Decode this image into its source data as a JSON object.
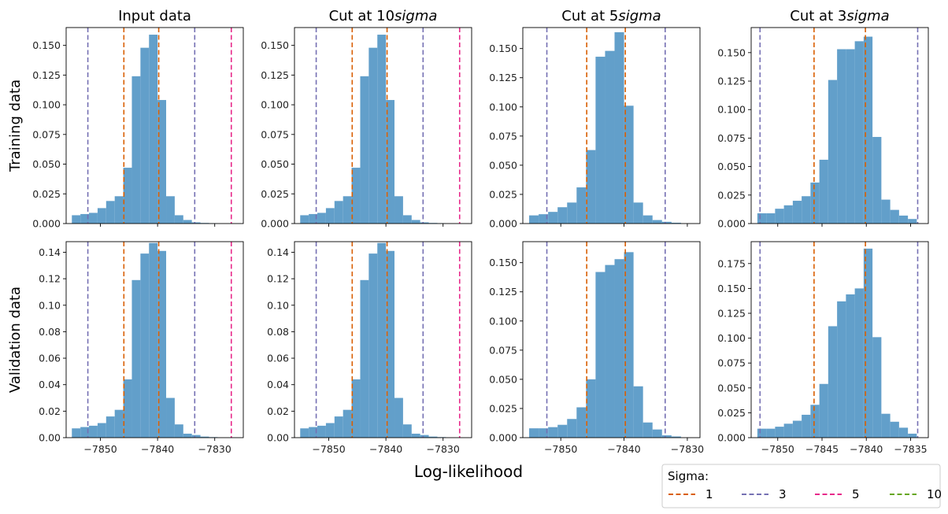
{
  "figure": {
    "xlabel": "Log-likelihood",
    "row_labels": [
      "Training data",
      "Validation data"
    ],
    "column_titles": [
      "Input data",
      "Cut at 10$sigma$",
      "Cut at 5$sigma$",
      "Cut at 3$sigma$"
    ],
    "legend": {
      "title": "Sigma:",
      "position": "bottom-right",
      "entries": [
        {
          "label": "1",
          "color": "#d95f02"
        },
        {
          "label": "3",
          "color": "#7570b3"
        },
        {
          "label": "5",
          "color": "#e7298a"
        },
        {
          "label": "10",
          "color": "#66a61e"
        }
      ]
    },
    "bar_color": "#629fca"
  },
  "chart_data": [
    {
      "type": "bar",
      "row": 0,
      "col": 0,
      "title": "Input data",
      "ylabel": "Training data",
      "xlim": [
        -7856,
        -7825
      ],
      "ylim": [
        0,
        0.165
      ],
      "xticks": [
        -7850,
        -7840,
        -7830
      ],
      "show_xtick_labels": false,
      "yticks": [
        0,
        0.025,
        0.05,
        0.075,
        0.1,
        0.125,
        0.15
      ],
      "ytick_labels": [
        "0.000",
        "0.025",
        "0.050",
        "0.075",
        "0.100",
        "0.125",
        "0.150"
      ],
      "bin_edges": [
        -7855,
        -7853.5,
        -7852,
        -7850.5,
        -7849,
        -7847.5,
        -7846,
        -7844.5,
        -7843,
        -7841.5,
        -7840,
        -7838.5,
        -7837,
        -7835.5,
        -7834,
        -7832.5,
        -7831,
        -7829.5
      ],
      "values": [
        0.007,
        0.008,
        0.009,
        0.013,
        0.019,
        0.023,
        0.047,
        0.124,
        0.148,
        0.159,
        0.104,
        0.023,
        0.007,
        0.003,
        0.001,
        0.0005,
        0.0003
      ],
      "vlines": [
        {
          "x": -7845.9,
          "sigma": "1"
        },
        {
          "x": -7839.8,
          "sigma": "1"
        },
        {
          "x": -7852.2,
          "sigma": "3"
        },
        {
          "x": -7833.5,
          "sigma": "3"
        },
        {
          "x": -7827.1,
          "sigma": "5"
        }
      ]
    },
    {
      "type": "bar",
      "row": 0,
      "col": 1,
      "title": "Cut at 10$sigma$",
      "xlim": [
        -7856,
        -7825
      ],
      "ylim": [
        0,
        0.165
      ],
      "xticks": [
        -7850,
        -7840,
        -7830
      ],
      "show_xtick_labels": false,
      "yticks": [
        0,
        0.025,
        0.05,
        0.075,
        0.1,
        0.125,
        0.15
      ],
      "ytick_labels": [
        "0.000",
        "0.025",
        "0.050",
        "0.075",
        "0.100",
        "0.125",
        "0.150"
      ],
      "bin_edges": [
        -7855,
        -7853.5,
        -7852,
        -7850.5,
        -7849,
        -7847.5,
        -7846,
        -7844.5,
        -7843,
        -7841.5,
        -7840,
        -7838.5,
        -7837,
        -7835.5,
        -7834,
        -7832.5,
        -7831,
        -7829.5
      ],
      "values": [
        0.007,
        0.008,
        0.009,
        0.013,
        0.019,
        0.023,
        0.047,
        0.124,
        0.148,
        0.159,
        0.104,
        0.023,
        0.007,
        0.003,
        0.001,
        0.0005,
        0.0003
      ],
      "vlines": [
        {
          "x": -7845.9,
          "sigma": "1"
        },
        {
          "x": -7839.8,
          "sigma": "1"
        },
        {
          "x": -7852.2,
          "sigma": "3"
        },
        {
          "x": -7833.5,
          "sigma": "3"
        },
        {
          "x": -7827.1,
          "sigma": "5"
        }
      ]
    },
    {
      "type": "bar",
      "row": 0,
      "col": 2,
      "title": "Cut at 5$sigma$",
      "xlim": [
        -7856,
        -7828
      ],
      "ylim": [
        0,
        0.168
      ],
      "xticks": [
        -7850,
        -7840,
        -7830
      ],
      "show_xtick_labels": false,
      "yticks": [
        0,
        0.025,
        0.05,
        0.075,
        0.1,
        0.125,
        0.15
      ],
      "ytick_labels": [
        "0.000",
        "0.025",
        "0.050",
        "0.075",
        "0.100",
        "0.125",
        "0.150"
      ],
      "bin_edges": [
        -7855,
        -7853.5,
        -7852,
        -7850.5,
        -7849,
        -7847.5,
        -7846,
        -7844.5,
        -7843,
        -7841.5,
        -7840,
        -7838.5,
        -7837,
        -7835.5,
        -7834,
        -7832.5,
        -7831
      ],
      "values": [
        0.007,
        0.008,
        0.01,
        0.014,
        0.018,
        0.031,
        0.063,
        0.143,
        0.148,
        0.164,
        0.101,
        0.018,
        0.007,
        0.003,
        0.0015,
        0.0007
      ],
      "vlines": [
        {
          "x": -7845.9,
          "sigma": "1"
        },
        {
          "x": -7839.8,
          "sigma": "1"
        },
        {
          "x": -7852.2,
          "sigma": "3"
        },
        {
          "x": -7833.5,
          "sigma": "3"
        }
      ]
    },
    {
      "type": "bar",
      "row": 0,
      "col": 3,
      "title": "Cut at 3$sigma$",
      "xlim": [
        -7853,
        -7833
      ],
      "ylim": [
        0,
        0.172
      ],
      "xticks": [
        -7850,
        -7845,
        -7840,
        -7835
      ],
      "show_xtick_labels": false,
      "yticks": [
        0,
        0.025,
        0.05,
        0.075,
        0.1,
        0.125,
        0.15
      ],
      "ytick_labels": [
        "0.000",
        "0.025",
        "0.050",
        "0.075",
        "0.100",
        "0.125",
        "0.150"
      ],
      "bin_edges": [
        -7852.3,
        -7851.3,
        -7850.3,
        -7849.3,
        -7848.3,
        -7847.3,
        -7846.3,
        -7845.3,
        -7844.3,
        -7843.3,
        -7842.3,
        -7841.3,
        -7840.3,
        -7839.3,
        -7838.3,
        -7837.3,
        -7836.3,
        -7835.3,
        -7834.3
      ],
      "values": [
        0.009,
        0.009,
        0.013,
        0.016,
        0.02,
        0.024,
        0.036,
        0.056,
        0.126,
        0.153,
        0.153,
        0.16,
        0.164,
        0.076,
        0.021,
        0.012,
        0.007,
        0.004,
        0.002
      ],
      "vlines": [
        {
          "x": -7845.9,
          "sigma": "1"
        },
        {
          "x": -7840.1,
          "sigma": "1"
        },
        {
          "x": -7852.0,
          "sigma": "3"
        },
        {
          "x": -7834.2,
          "sigma": "3"
        }
      ]
    },
    {
      "type": "bar",
      "row": 1,
      "col": 0,
      "ylabel": "Validation data",
      "xlim": [
        -7856,
        -7825
      ],
      "ylim": [
        0,
        0.148
      ],
      "xticks": [
        -7850,
        -7840,
        -7830
      ],
      "xtick_labels": [
        "−7850",
        "−7840",
        "−7830"
      ],
      "yticks": [
        0,
        0.02,
        0.04,
        0.06,
        0.08,
        0.1,
        0.12,
        0.14
      ],
      "ytick_labels": [
        "0.00",
        "0.02",
        "0.04",
        "0.06",
        "0.08",
        "0.10",
        "0.12",
        "0.14"
      ],
      "bin_edges": [
        -7855,
        -7853.5,
        -7852,
        -7850.5,
        -7849,
        -7847.5,
        -7846,
        -7844.5,
        -7843,
        -7841.5,
        -7840,
        -7838.5,
        -7837,
        -7835.5,
        -7834,
        -7832.5,
        -7831,
        -7829.5
      ],
      "values": [
        0.007,
        0.008,
        0.009,
        0.011,
        0.016,
        0.021,
        0.044,
        0.119,
        0.139,
        0.147,
        0.141,
        0.03,
        0.01,
        0.003,
        0.002,
        0.0008,
        0.0004
      ],
      "vlines": [
        {
          "x": -7845.9,
          "sigma": "1"
        },
        {
          "x": -7839.8,
          "sigma": "1"
        },
        {
          "x": -7852.2,
          "sigma": "3"
        },
        {
          "x": -7833.5,
          "sigma": "3"
        },
        {
          "x": -7827.1,
          "sigma": "5"
        }
      ]
    },
    {
      "type": "bar",
      "row": 1,
      "col": 1,
      "xlim": [
        -7856,
        -7825
      ],
      "ylim": [
        0,
        0.148
      ],
      "xticks": [
        -7850,
        -7840,
        -7830
      ],
      "xtick_labels": [
        "−7850",
        "−7840",
        "−7830"
      ],
      "yticks": [
        0,
        0.02,
        0.04,
        0.06,
        0.08,
        0.1,
        0.12,
        0.14
      ],
      "ytick_labels": [
        "0.00",
        "0.02",
        "0.04",
        "0.06",
        "0.08",
        "0.10",
        "0.12",
        "0.14"
      ],
      "bin_edges": [
        -7855,
        -7853.5,
        -7852,
        -7850.5,
        -7849,
        -7847.5,
        -7846,
        -7844.5,
        -7843,
        -7841.5,
        -7840,
        -7838.5,
        -7837,
        -7835.5,
        -7834,
        -7832.5,
        -7831,
        -7829.5
      ],
      "values": [
        0.007,
        0.008,
        0.009,
        0.011,
        0.016,
        0.021,
        0.044,
        0.119,
        0.139,
        0.147,
        0.141,
        0.03,
        0.01,
        0.003,
        0.002,
        0.0008,
        0.0004
      ],
      "vlines": [
        {
          "x": -7845.9,
          "sigma": "1"
        },
        {
          "x": -7839.8,
          "sigma": "1"
        },
        {
          "x": -7852.2,
          "sigma": "3"
        },
        {
          "x": -7833.5,
          "sigma": "3"
        },
        {
          "x": -7827.1,
          "sigma": "5"
        }
      ]
    },
    {
      "type": "bar",
      "row": 1,
      "col": 2,
      "xlim": [
        -7856,
        -7828
      ],
      "ylim": [
        0,
        0.168
      ],
      "xticks": [
        -7850,
        -7840,
        -7830
      ],
      "xtick_labels": [
        "−7850",
        "−7840",
        "−7830"
      ],
      "yticks": [
        0,
        0.025,
        0.05,
        0.075,
        0.1,
        0.125,
        0.15
      ],
      "ytick_labels": [
        "0.000",
        "0.025",
        "0.050",
        "0.075",
        "0.100",
        "0.125",
        "0.150"
      ],
      "bin_edges": [
        -7855,
        -7853.5,
        -7852,
        -7850.5,
        -7849,
        -7847.5,
        -7846,
        -7844.5,
        -7843,
        -7841.5,
        -7840,
        -7838.5,
        -7837,
        -7835.5,
        -7834,
        -7832.5,
        -7831
      ],
      "values": [
        0.008,
        0.008,
        0.009,
        0.011,
        0.016,
        0.026,
        0.05,
        0.142,
        0.148,
        0.153,
        0.159,
        0.044,
        0.013,
        0.007,
        0.002,
        0.001
      ],
      "vlines": [
        {
          "x": -7845.9,
          "sigma": "1"
        },
        {
          "x": -7839.8,
          "sigma": "1"
        },
        {
          "x": -7852.2,
          "sigma": "3"
        },
        {
          "x": -7833.5,
          "sigma": "3"
        }
      ]
    },
    {
      "type": "bar",
      "row": 1,
      "col": 3,
      "xlim": [
        -7853,
        -7833
      ],
      "ylim": [
        0,
        0.197
      ],
      "xticks": [
        -7850,
        -7845,
        -7840,
        -7835
      ],
      "xtick_labels": [
        "−7850",
        "−7845",
        "−7840",
        "−7835"
      ],
      "yticks": [
        0,
        0.025,
        0.05,
        0.075,
        0.1,
        0.125,
        0.15,
        0.175
      ],
      "ytick_labels": [
        "0.000",
        "0.025",
        "0.050",
        "0.075",
        "0.100",
        "0.125",
        "0.150",
        "0.175"
      ],
      "bin_edges": [
        -7852.3,
        -7851.3,
        -7850.3,
        -7849.3,
        -7848.3,
        -7847.3,
        -7846.3,
        -7845.3,
        -7844.3,
        -7843.3,
        -7842.3,
        -7841.3,
        -7840.3,
        -7839.3,
        -7838.3,
        -7837.3,
        -7836.3,
        -7835.3,
        -7834.3
      ],
      "values": [
        0.009,
        0.009,
        0.011,
        0.014,
        0.017,
        0.023,
        0.033,
        0.054,
        0.112,
        0.137,
        0.144,
        0.15,
        0.19,
        0.101,
        0.024,
        0.016,
        0.01,
        0.004,
        0.003
      ],
      "vlines": [
        {
          "x": -7845.9,
          "sigma": "1"
        },
        {
          "x": -7840.1,
          "sigma": "1"
        },
        {
          "x": -7852.0,
          "sigma": "3"
        },
        {
          "x": -7834.2,
          "sigma": "3"
        }
      ]
    }
  ]
}
